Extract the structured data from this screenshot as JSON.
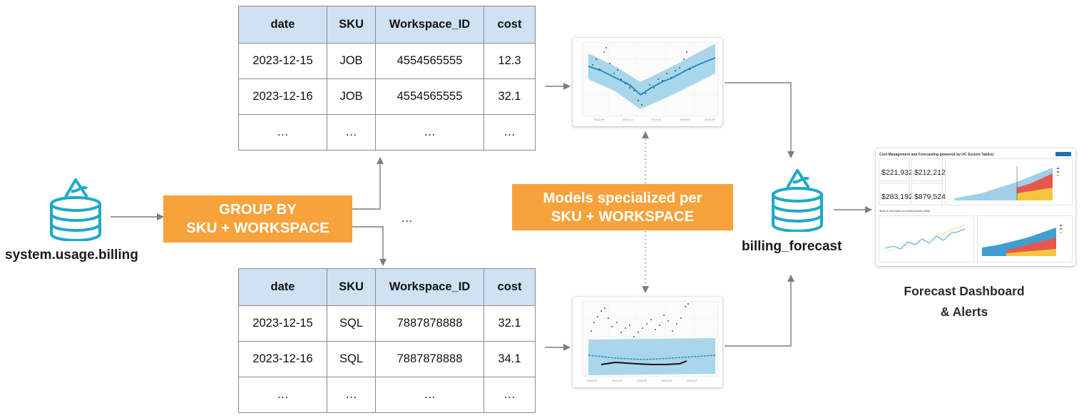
{
  "source": {
    "label": "system.usage.billing",
    "icon": "delta-table-icon"
  },
  "group_by": {
    "line1": "GROUP BY",
    "line2": "SKU + WORKSPACE"
  },
  "between_ellipsis": "…",
  "tables": [
    {
      "columns": [
        "date",
        "SKU",
        "Workspace_ID",
        "cost"
      ],
      "rows": [
        [
          "2023-12-15",
          "JOB",
          "4554565555",
          "12.3"
        ],
        [
          "2023-12-16",
          "JOB",
          "4554565555",
          "32.1"
        ],
        [
          "…",
          "…",
          "…",
          "…"
        ]
      ]
    },
    {
      "columns": [
        "date",
        "SKU",
        "Workspace_ID",
        "cost"
      ],
      "rows": [
        [
          "2023-12-15",
          "SQL",
          "7887878888",
          "32.1"
        ],
        [
          "2023-12-16",
          "SQL",
          "7887878888",
          "34.1"
        ],
        [
          "…",
          "…",
          "…",
          "…"
        ]
      ]
    }
  ],
  "models": {
    "line1": "Models specialized per",
    "line2": "SKU + WORKSPACE"
  },
  "forecast_table": {
    "label": "billing_forecast",
    "icon": "delta-table-icon"
  },
  "dashboard": {
    "title": "Cost Management and Forecasting (powered by UC System Tables)",
    "kpis": [
      "$221,932",
      "$212,212",
      "$283,192",
      "$879,524"
    ],
    "section": "$DBUs forecasts and Data Assets Utility"
  },
  "caption": {
    "line1": "Forecast Dashboard",
    "line2": "& Alerts"
  },
  "colors": {
    "table_header": "#cfe2f3",
    "accent_orange": "#f7a23b",
    "delta_teal": "#1fa8c9",
    "forecast_blue": "#1f8ec9",
    "band_blue": "#a9d6ea"
  }
}
